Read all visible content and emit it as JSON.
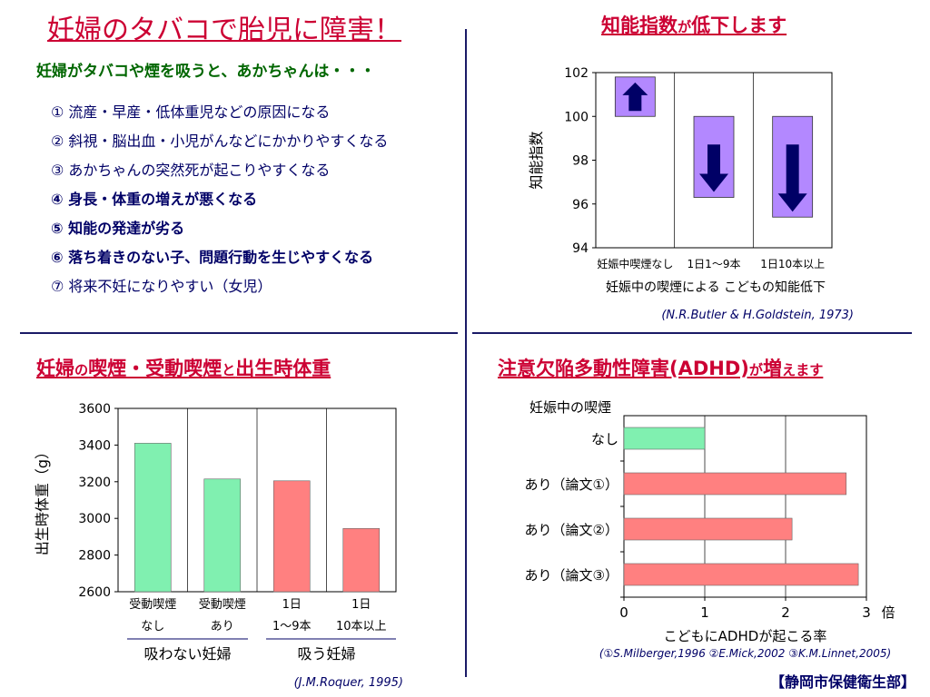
{
  "top_left": {
    "title": "妊婦のタバコで胎児に障害！",
    "subtitle": "妊婦がタバコや煙を吸うと、あかちゃんは・・・",
    "effects": [
      {
        "text": "① 流産・早産・低体重児などの原因になる",
        "bold": false
      },
      {
        "text": "② 斜視・脳出血・小児がんなどにかかりやすくなる",
        "bold": false
      },
      {
        "text": "③ あかちゃんの突然死が起こりやすくなる",
        "bold": false
      },
      {
        "text": "④ 身長・体重の増えが悪くなる",
        "bold": true
      },
      {
        "text": "⑤ 知能の発達が劣る",
        "bold": true
      },
      {
        "text": "⑥ 落ち着きのない子、問題行動を生じやすくなる",
        "bold": true
      },
      {
        "text": "⑦ 将来不妊になりやすい（女児）",
        "bold": false
      }
    ]
  },
  "top_right": {
    "title_a": "知能指数",
    "title_b": "が",
    "title_c": "低下します"
  },
  "bottom_left": {
    "title_a": "妊婦",
    "title_b": "の",
    "title_c": "喫煙・受動喫煙",
    "title_d": "と",
    "title_e": "出生時体重"
  },
  "bottom_right": {
    "title_a": "注意欠陥多動性障害(ADHD)",
    "title_b": "が",
    "title_c": "増",
    "title_d": "えます"
  },
  "footer": "【静岡市保健衛生部】",
  "colors": {
    "title_red": "#cc0033",
    "navy": "#000066",
    "green": "#006600",
    "purple_bar": "#b388ff",
    "arrow": "#000066",
    "green_bar": "#80f0b0",
    "red_bar": "#ff8080"
  },
  "chart_data": [
    {
      "id": "iq",
      "type": "bar",
      "categories": [
        "妊娠中喫煙なし",
        "1日1〜9本",
        "1日10本以上"
      ],
      "values": [
        101.8,
        96.3,
        95.4
      ],
      "baseline": 100,
      "ylabel": "知能指数",
      "xlabel": "妊娠中の喫煙による こどもの知能低下",
      "ylim": [
        94,
        102
      ],
      "yticks": [
        "94",
        "96",
        "98",
        "100",
        "102"
      ],
      "source": "(N.R.Butler & H.Goldstein, 1973)",
      "grid": true
    },
    {
      "id": "birthweight",
      "type": "bar",
      "categories": [
        [
          "受動喫煙",
          "なし"
        ],
        [
          "受動喫煙",
          "あり"
        ],
        [
          "1日",
          "1〜9本"
        ],
        [
          "1日",
          "10本以上"
        ]
      ],
      "values": [
        3410,
        3215,
        3205,
        2945
      ],
      "group_labels": [
        "吸わない妊婦",
        "吸う妊婦"
      ],
      "ylabel": "出生時体重（g）",
      "ylim": [
        2600,
        3600
      ],
      "yticks": [
        "2600",
        "2800",
        "3000",
        "3200",
        "3400",
        "3600"
      ],
      "source": "(J.M.Roquer, 1995)",
      "grid": true
    },
    {
      "id": "adhd",
      "type": "bar",
      "orientation": "horizontal",
      "categories": [
        "なし",
        "あり（論文①）",
        "あり（論文②）",
        "あり（論文③）"
      ],
      "values": [
        1.0,
        2.75,
        2.08,
        2.9
      ],
      "category_title": "妊娠中の喫煙",
      "xlabel": "こどもにADHDが起こる率",
      "unit": "倍",
      "xlim": [
        0,
        3
      ],
      "xticks": [
        "0",
        "1",
        "2",
        "3"
      ],
      "source": "(①S.Milberger,1996  ②E.Mick,2002  ③K.M.Linnet,2005)",
      "grid": true
    }
  ]
}
